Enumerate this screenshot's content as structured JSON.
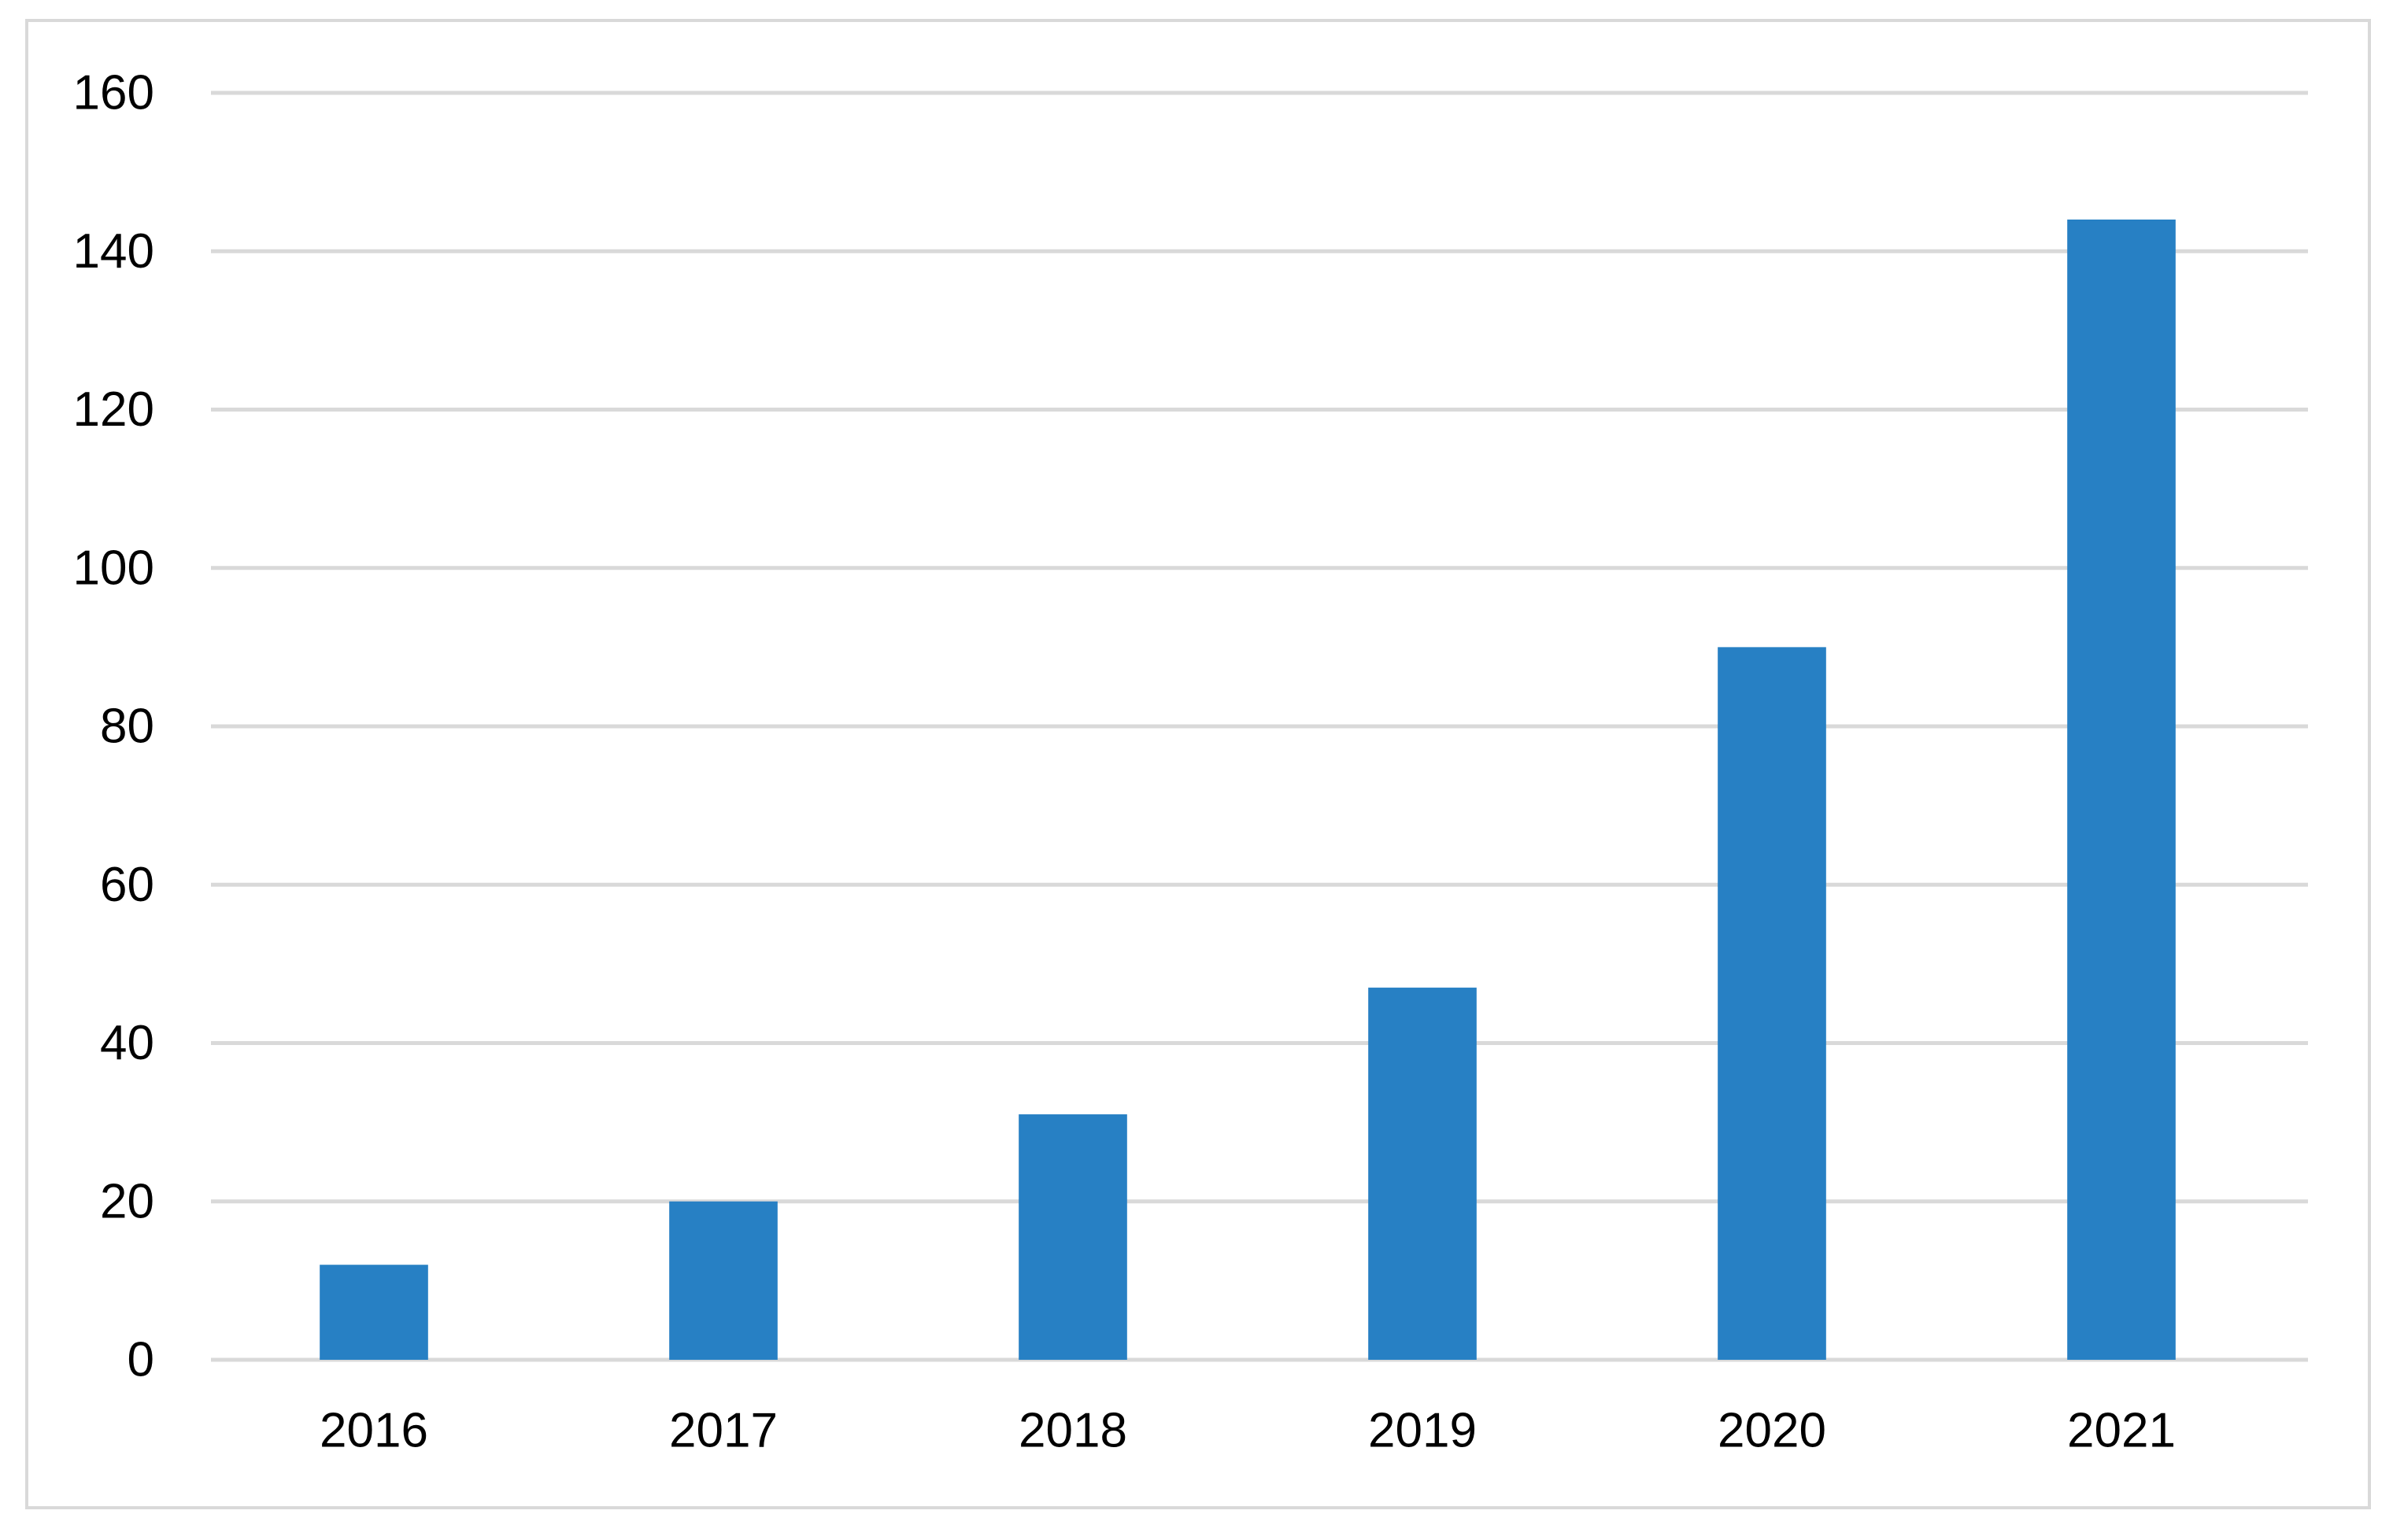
{
  "chart_data": {
    "type": "bar",
    "title": "",
    "xlabel": "",
    "ylabel": "",
    "categories": [
      "2016",
      "2017",
      "2018",
      "2019",
      "2020",
      "2021"
    ],
    "values": [
      12,
      20,
      31,
      47,
      90,
      144
    ],
    "ylim": [
      0,
      160
    ],
    "y_ticks": [
      "0",
      "20",
      "40",
      "60",
      "80",
      "100",
      "120",
      "140",
      "160"
    ],
    "grid": true,
    "bar_color": "#2780c4",
    "gridline_color": "#d9d9d9"
  }
}
